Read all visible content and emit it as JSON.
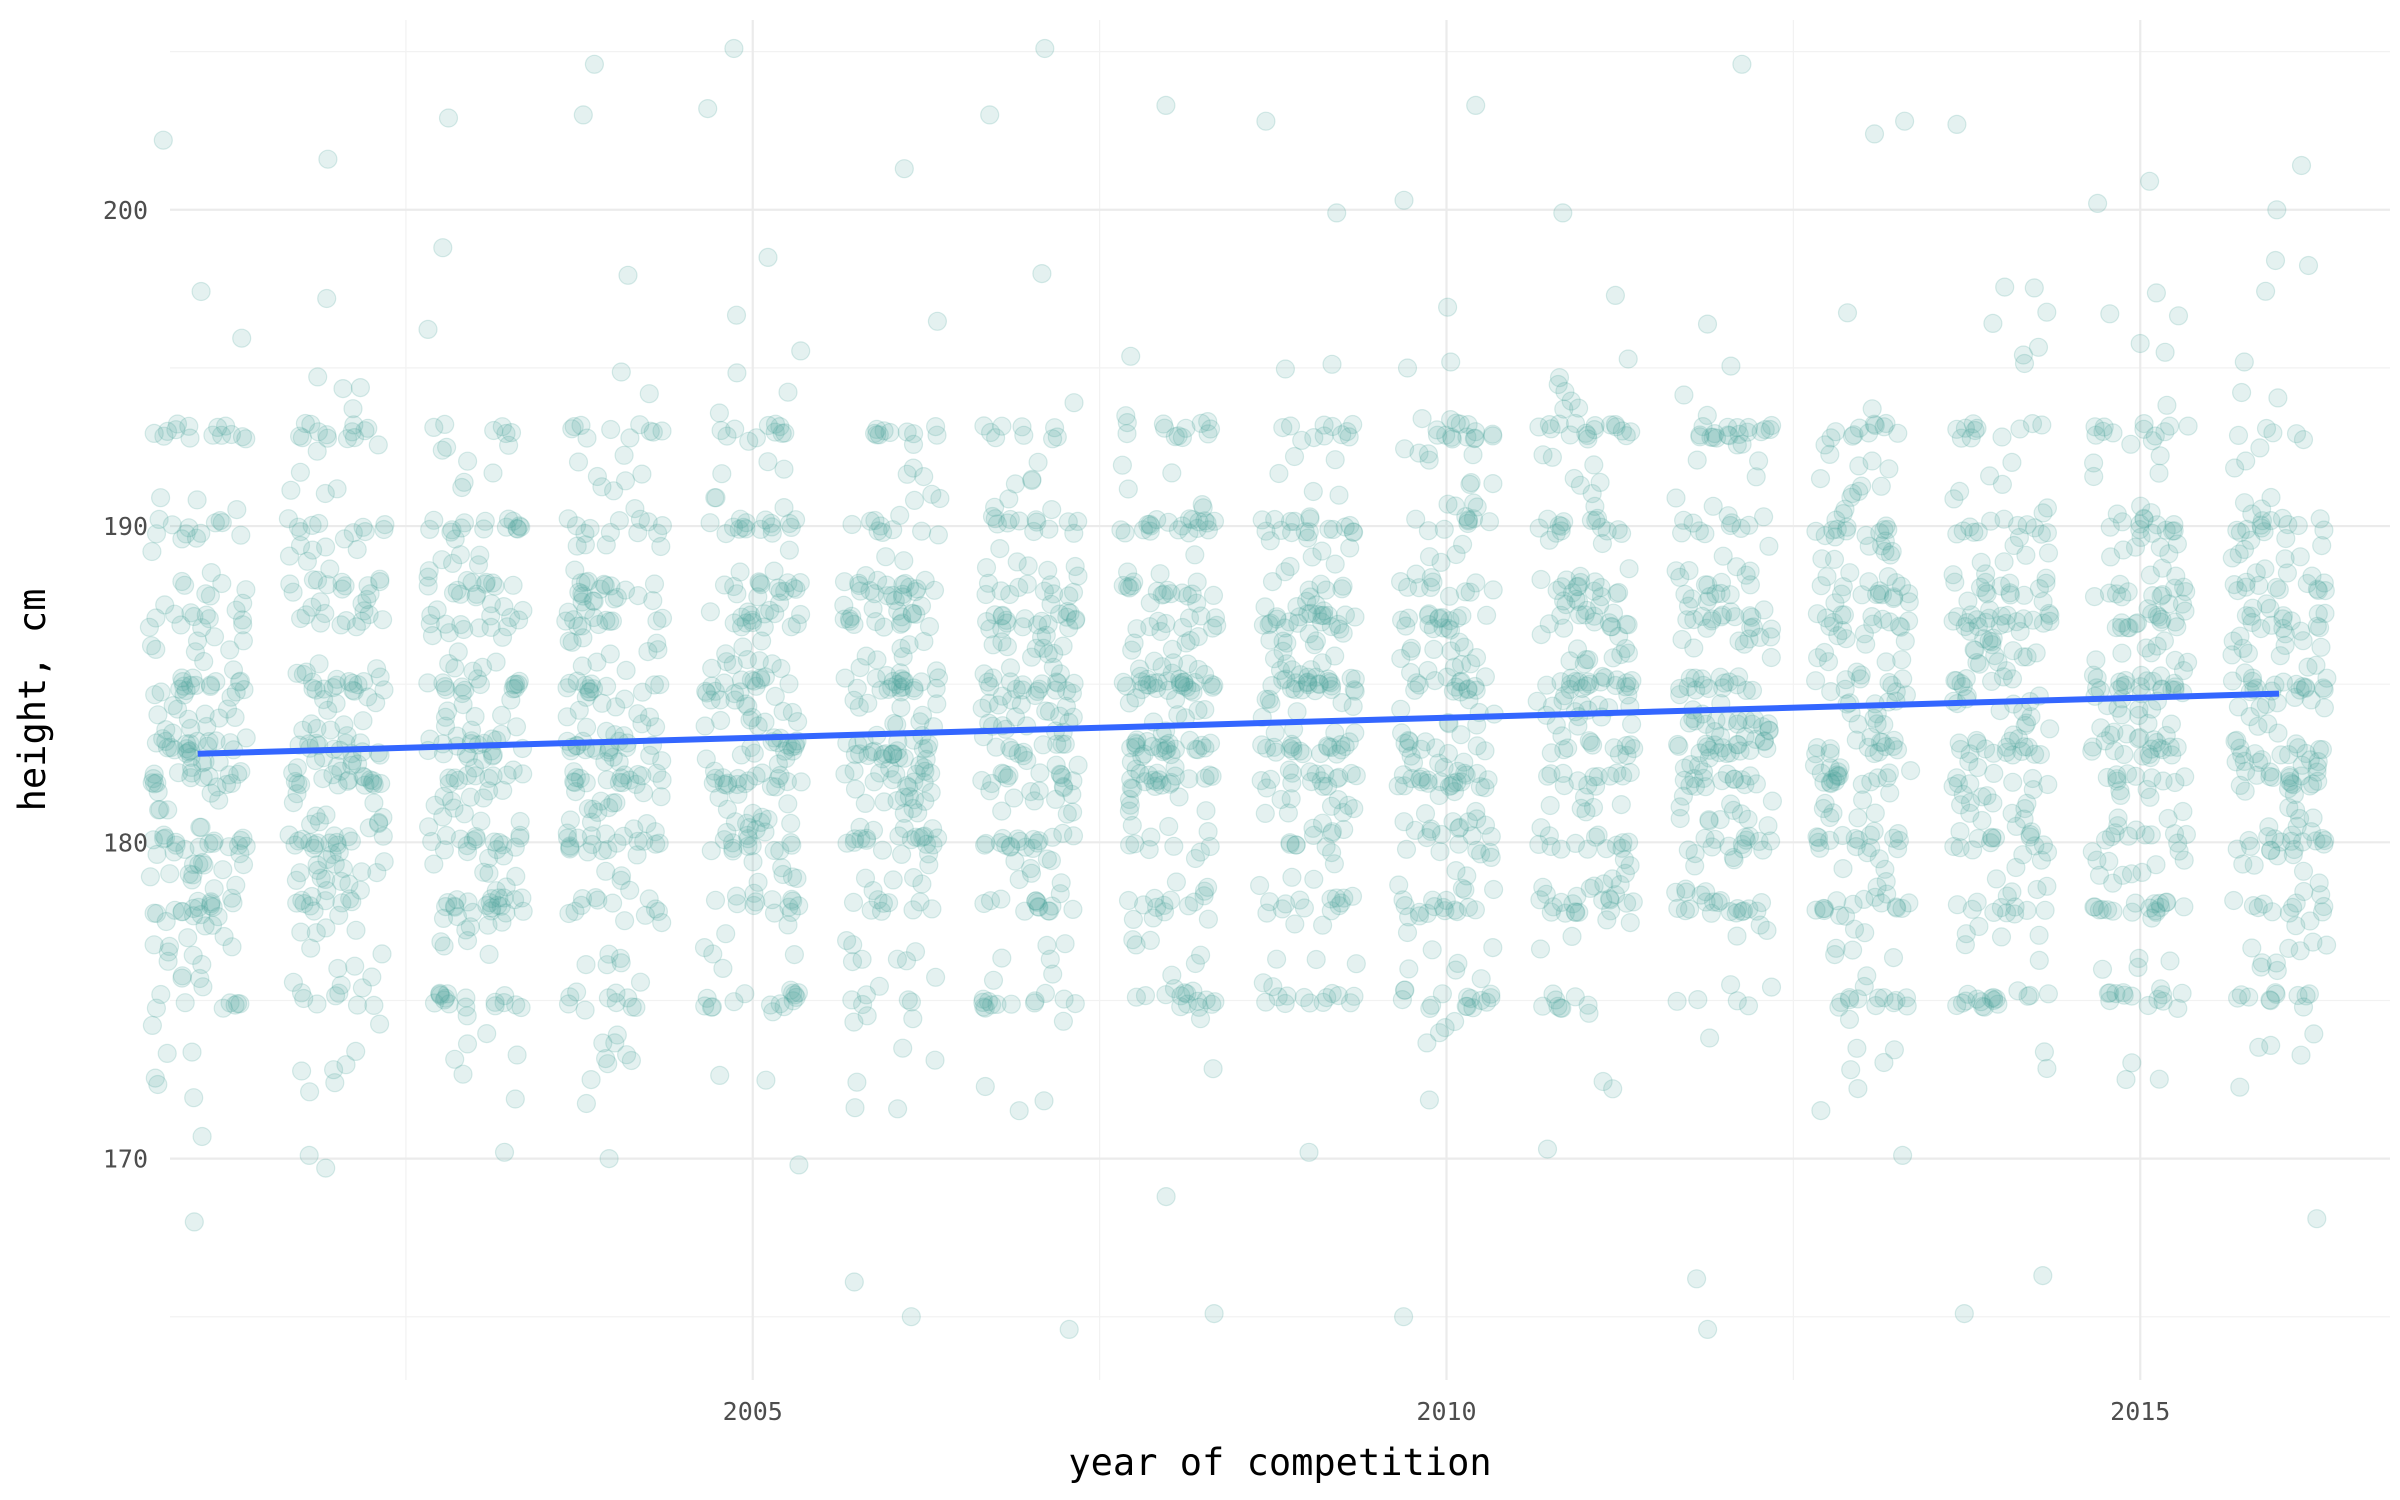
{
  "chart_data": {
    "type": "scatter",
    "title": "",
    "xlabel": "year of competition",
    "ylabel": "height, cm",
    "xlim": [
      2000.8,
      2016.8
    ],
    "ylim": [
      163,
      206
    ],
    "x_ticks": [
      2005,
      2010,
      2015
    ],
    "y_ticks": [
      170,
      180,
      190,
      200
    ],
    "grid": true,
    "legend": "none",
    "colors": {
      "points": "#4aa39b",
      "trend": "#3366ff"
    },
    "point_alpha": 0.15,
    "x_jitter": 0.35,
    "years": [
      2001,
      2002,
      2003,
      2004,
      2005,
      2006,
      2007,
      2008,
      2009,
      2010,
      2011,
      2012,
      2013,
      2014,
      2015,
      2016
    ],
    "points_per_year": 220,
    "height_distribution": {
      "common_values": [
        175,
        178,
        180,
        182,
        183,
        185,
        187,
        188,
        190,
        193
      ],
      "typical_range": [
        174,
        196
      ],
      "outliers": [
        {
          "x": 2001,
          "y": 202.2
        },
        {
          "x": 2001,
          "y": 168.0
        },
        {
          "x": 2001,
          "y": 170.7
        },
        {
          "x": 2002,
          "y": 201.6
        },
        {
          "x": 2002,
          "y": 169.7
        },
        {
          "x": 2002,
          "y": 170.1
        },
        {
          "x": 2003,
          "y": 202.9
        },
        {
          "x": 2003,
          "y": 198.8
        },
        {
          "x": 2003,
          "y": 170.2
        },
        {
          "x": 2004,
          "y": 204.6
        },
        {
          "x": 2004,
          "y": 203.0
        },
        {
          "x": 2004,
          "y": 170.0
        },
        {
          "x": 2005,
          "y": 205.1
        },
        {
          "x": 2005,
          "y": 203.2
        },
        {
          "x": 2005,
          "y": 169.8
        },
        {
          "x": 2006,
          "y": 201.3
        },
        {
          "x": 2006,
          "y": 165.0
        },
        {
          "x": 2006,
          "y": 166.1
        },
        {
          "x": 2007,
          "y": 205.1
        },
        {
          "x": 2007,
          "y": 203.0
        },
        {
          "x": 2007,
          "y": 164.6
        },
        {
          "x": 2008,
          "y": 203.3
        },
        {
          "x": 2008,
          "y": 165.1
        },
        {
          "x": 2008,
          "y": 168.8
        },
        {
          "x": 2009,
          "y": 202.8
        },
        {
          "x": 2009,
          "y": 199.9
        },
        {
          "x": 2009,
          "y": 170.2
        },
        {
          "x": 2010,
          "y": 203.3
        },
        {
          "x": 2010,
          "y": 200.3
        },
        {
          "x": 2010,
          "y": 165.0
        },
        {
          "x": 2011,
          "y": 199.9
        },
        {
          "x": 2011,
          "y": 170.3
        },
        {
          "x": 2012,
          "y": 204.6
        },
        {
          "x": 2012,
          "y": 164.6
        },
        {
          "x": 2012,
          "y": 166.2
        },
        {
          "x": 2013,
          "y": 202.8
        },
        {
          "x": 2013,
          "y": 202.4
        },
        {
          "x": 2013,
          "y": 170.1
        },
        {
          "x": 2014,
          "y": 202.7
        },
        {
          "x": 2014,
          "y": 166.3
        },
        {
          "x": 2014,
          "y": 165.1
        },
        {
          "x": 2015,
          "y": 200.9
        },
        {
          "x": 2015,
          "y": 200.2
        },
        {
          "x": 2015,
          "y": 172.5
        },
        {
          "x": 2016,
          "y": 201.4
        },
        {
          "x": 2016,
          "y": 200.0
        },
        {
          "x": 2016,
          "y": 168.1
        }
      ]
    },
    "trend_line": {
      "x": [
        2001,
        2016
      ],
      "y": [
        182.8,
        184.7
      ]
    }
  }
}
